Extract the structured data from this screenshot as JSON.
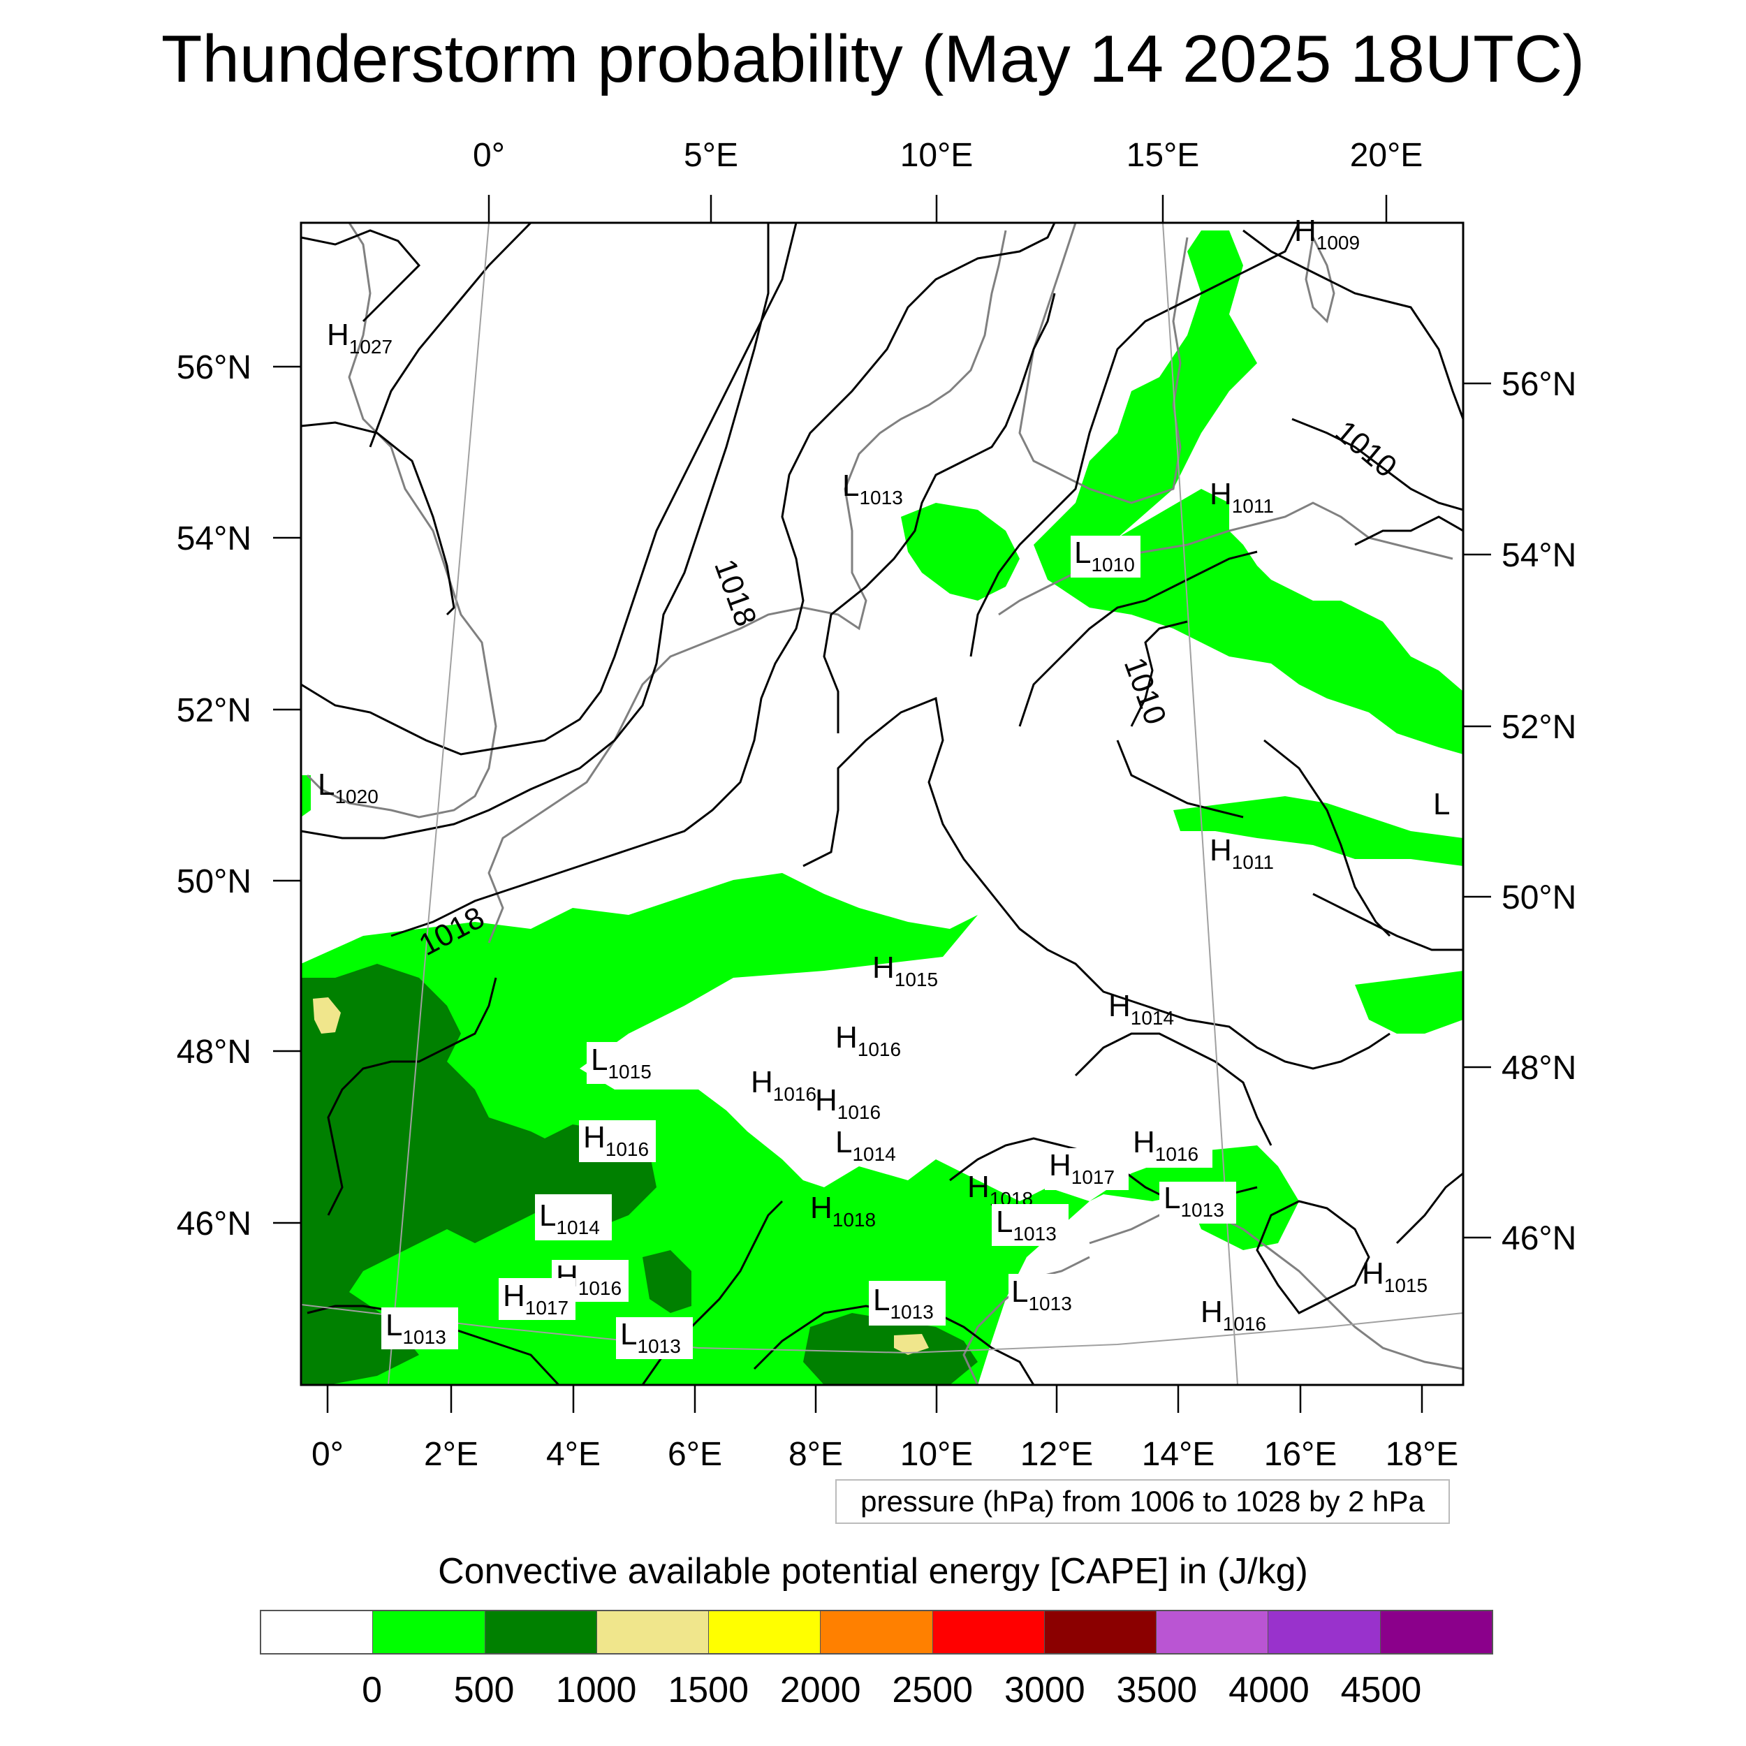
{
  "title": "Thunderstorm probability (May 14 2025 18UTC)",
  "map": {
    "top_lon_labels": [
      "0°",
      "5°E",
      "10°E",
      "15°E",
      "20°E"
    ],
    "bottom_lon_labels": [
      "0°",
      "2°E",
      "4°E",
      "6°E",
      "8°E",
      "10°E",
      "12°E",
      "14°E",
      "16°E",
      "18°E"
    ],
    "left_lat_labels": [
      "56°N",
      "54°N",
      "52°N",
      "50°N",
      "48°N",
      "46°N"
    ],
    "right_lat_labels": [
      "56°N",
      "54°N",
      "52°N",
      "50°N",
      "48°N",
      "46°N"
    ],
    "contour_labels": [
      "1018",
      "1018",
      "1010",
      "1010"
    ],
    "pressure_centers": [
      {
        "type": "H",
        "value": "1027"
      },
      {
        "type": "H",
        "value": "1009"
      },
      {
        "type": "L",
        "value": "1013"
      },
      {
        "type": "H",
        "value": "1011"
      },
      {
        "type": "L",
        "value": "1010"
      },
      {
        "type": "L",
        "value": "1020"
      },
      {
        "type": "L",
        "value": ""
      },
      {
        "type": "H",
        "value": "1011"
      },
      {
        "type": "H",
        "value": "1015"
      },
      {
        "type": "H",
        "value": "1014"
      },
      {
        "type": "H",
        "value": "1016"
      },
      {
        "type": "L",
        "value": "1015"
      },
      {
        "type": "H",
        "value": "1016"
      },
      {
        "type": "H",
        "value": "1016"
      },
      {
        "type": "L",
        "value": "1014"
      },
      {
        "type": "H",
        "value": "1016"
      },
      {
        "type": "H",
        "value": "1017"
      },
      {
        "type": "H",
        "value": "1016"
      },
      {
        "type": "H",
        "value": "1018"
      },
      {
        "type": "L",
        "value": "1014"
      },
      {
        "type": "H",
        "value": "1018"
      },
      {
        "type": "L",
        "value": "1013"
      },
      {
        "type": "L",
        "value": "1013"
      },
      {
        "type": "H",
        "value": "1016"
      },
      {
        "type": "H",
        "value": "1017"
      },
      {
        "type": "L",
        "value": "1013"
      },
      {
        "type": "L",
        "value": "1013"
      },
      {
        "type": "L",
        "value": "1013"
      },
      {
        "type": "H",
        "value": "1015"
      },
      {
        "type": "L",
        "value": "1013"
      },
      {
        "type": "H",
        "value": "1016"
      }
    ],
    "colors": {
      "coast": "#808080",
      "isobar": "#000000",
      "graticule": "#a0a0a0"
    }
  },
  "pressure_note": "pressure (hPa) from 1006 to 1028 by 2 hPa",
  "cape_title": "Convective available potential energy [CAPE] in (J/kg)",
  "colorbar": {
    "colors": [
      "#ffffff",
      "#00ff00",
      "#008000",
      "#f0e68c",
      "#ffff00",
      "#ff8000",
      "#ff0000",
      "#8b0000",
      "#ba55d3",
      "#9932cc",
      "#8b008b"
    ],
    "labels": [
      "0",
      "500",
      "1000",
      "1500",
      "2000",
      "2500",
      "3000",
      "3500",
      "4000",
      "4500"
    ]
  }
}
